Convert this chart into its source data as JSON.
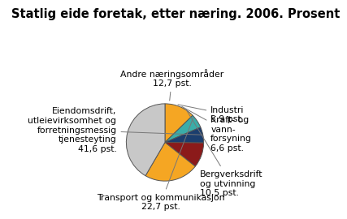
{
  "title": "Statlig eide foretak, etter næring. 2006. Prosent",
  "slices": [
    {
      "label": "Andre næringsområder\n12,7 pst.",
      "value": 12.7,
      "color": "#f5a623"
    },
    {
      "label": "Industri\n5,9 pst.",
      "value": 5.9,
      "color": "#3aada8"
    },
    {
      "label": "Kraft- og\nvann-\nforsyning\n6,6 pst.",
      "value": 6.6,
      "color": "#1b3e6e"
    },
    {
      "label": "Bergverksdrift\nog utvinning\n10,5 pst.",
      "value": 10.5,
      "color": "#8b1a1a"
    },
    {
      "label": "Transport og kommunikasjon\n22,7 pst.",
      "value": 22.7,
      "color": "#f5a623"
    },
    {
      "label": "Eiendomsdrift,\nutleievirksomhet og\nforretningsmessig\ntjenesteyting\n41,6 pst.",
      "value": 41.6,
      "color": "#c8c8c8"
    }
  ],
  "background_color": "#ffffff",
  "title_fontsize": 10.5,
  "label_fontsize": 7.8
}
